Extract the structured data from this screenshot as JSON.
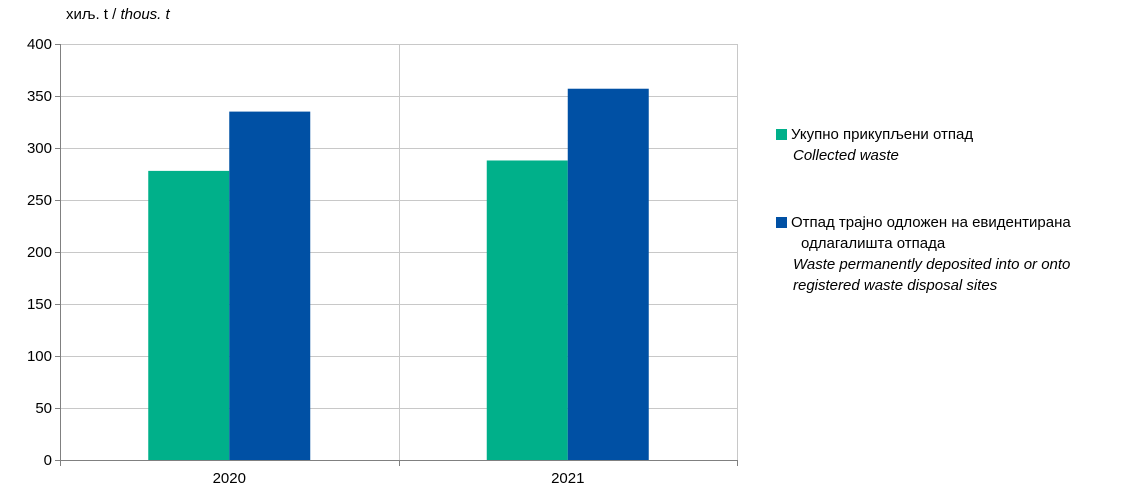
{
  "unit_label": {
    "local": "хиљ. t /",
    "english": "thous. t"
  },
  "legend": [
    {
      "local": "Укупно прикупљени отпад",
      "local_cont": "",
      "english": "Collected waste",
      "english_cont": ""
    },
    {
      "local": "Отпад трајно одложен на евидентирана",
      "local_cont": "одлагалишта  отпада",
      "english": "Waste permanently deposited into or onto",
      "english_cont": "registered waste disposal sites"
    }
  ],
  "chart_data": {
    "type": "bar",
    "categories": [
      "2020",
      "2021"
    ],
    "series": [
      {
        "name": "Укупно прикупљени отпад / Collected waste",
        "values": [
          278,
          288
        ],
        "color": "#00b08a"
      },
      {
        "name": "Отпад трајно одложен на евидентирана одлагалишта отпада / Waste permanently deposited into or onto registered waste disposal sites",
        "values": [
          335,
          357
        ],
        "color": "#0050a4"
      }
    ],
    "ylim": [
      0,
      400
    ],
    "yticks": [
      0,
      50,
      100,
      150,
      200,
      250,
      300,
      350,
      400
    ],
    "grid": true,
    "legend_position": "right"
  }
}
